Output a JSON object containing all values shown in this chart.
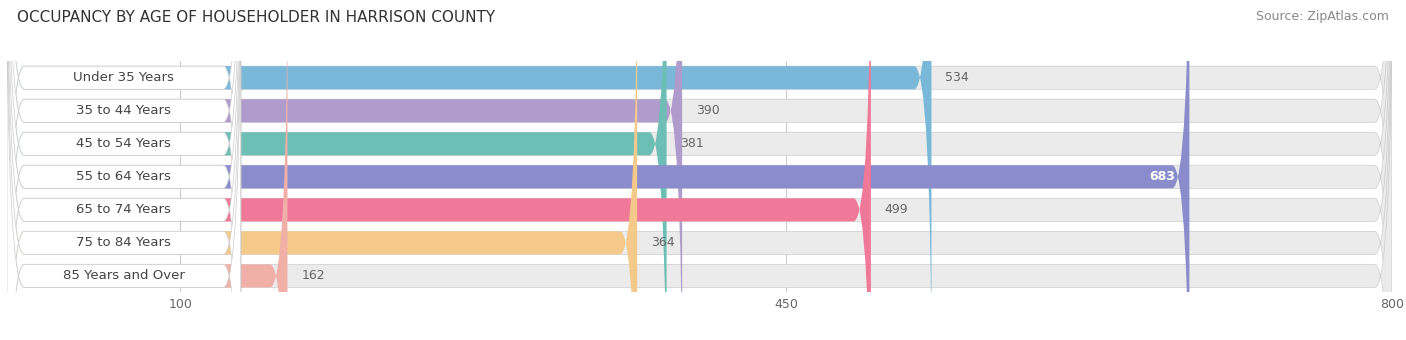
{
  "title": "OCCUPANCY BY AGE OF HOUSEHOLDER IN HARRISON COUNTY",
  "source": "Source: ZipAtlas.com",
  "categories": [
    "Under 35 Years",
    "35 to 44 Years",
    "45 to 54 Years",
    "55 to 64 Years",
    "65 to 74 Years",
    "75 to 84 Years",
    "85 Years and Over"
  ],
  "values": [
    534,
    390,
    381,
    683,
    499,
    364,
    162
  ],
  "bar_colors": [
    "#7ab8d9",
    "#b09ccc",
    "#6dbfb5",
    "#8b8ccc",
    "#f07898",
    "#f5c98a",
    "#f0b0a8"
  ],
  "bar_bg_color": "#ebebeb",
  "label_bg_color": "#ffffff",
  "text_color": "#444444",
  "value_color_inside": "#ffffff",
  "value_color_outside": "#666666",
  "xlim": [
    0,
    800
  ],
  "xticks": [
    100,
    450,
    800
  ],
  "title_fontsize": 11,
  "source_fontsize": 9,
  "label_fontsize": 9.5,
  "value_fontsize": 9,
  "background_color": "#ffffff",
  "inside_threshold": 550,
  "grid_color": "#cccccc",
  "grid_linewidth": 0.8
}
